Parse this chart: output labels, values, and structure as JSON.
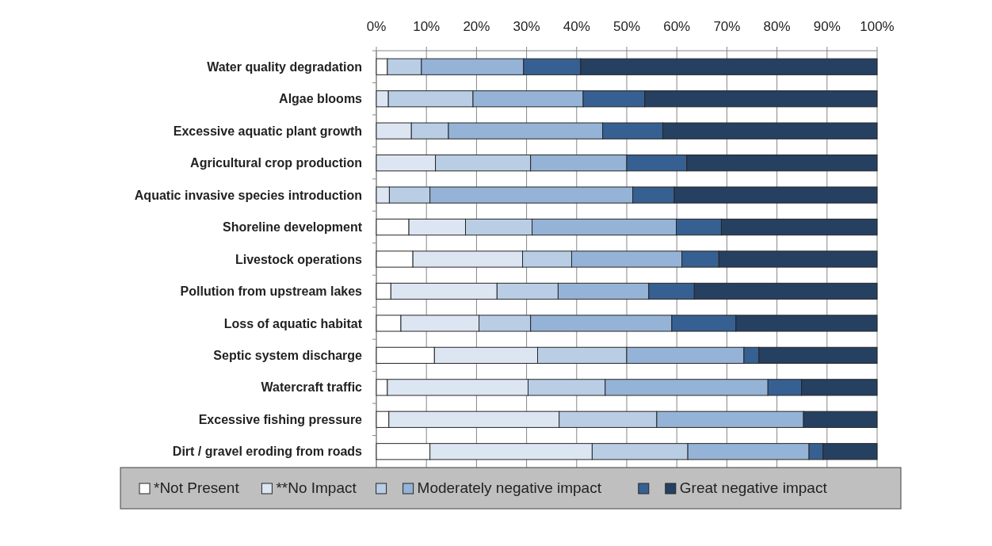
{
  "chart_data": {
    "type": "bar",
    "orientation": "horizontal",
    "stacked": true,
    "categories": [
      "Water quality degradation",
      "Algae blooms",
      "Excessive aquatic plant growth",
      "Agricultural crop production",
      "Aquatic invasive species introduction",
      "Shoreline development",
      "Livestock operations",
      "Pollution from upstream lakes",
      "Loss of aquatic habitat",
      "Septic system discharge",
      "Watercraft traffic",
      "Excessive fishing pressure",
      "Dirt / gravel eroding from roads"
    ],
    "series": [
      {
        "name": "*Not Present",
        "color": "#ffffff",
        "values": [
          2.2,
          0,
          0,
          0,
          0,
          6.5,
          7.3,
          2.9,
          4.9,
          11.6,
          2.2,
          2.5,
          10.7
        ]
      },
      {
        "name": "**No Impact",
        "color": "#dce6f2",
        "values": [
          0,
          2.4,
          7.0,
          11.8,
          2.6,
          11.3,
          21.9,
          21.2,
          15.6,
          20.6,
          28.1,
          34.0,
          32.4
        ]
      },
      {
        "name": null,
        "color": "#b9cde5",
        "values": [
          6.8,
          16.9,
          7.4,
          19.0,
          8.1,
          13.3,
          9.8,
          12.2,
          10.3,
          17.8,
          15.4,
          19.5,
          19.1
        ]
      },
      {
        "name": "Moderately negative impact",
        "color": "#95b3d7",
        "values": [
          20.4,
          22.0,
          30.8,
          19.2,
          40.5,
          28.8,
          22.0,
          18.1,
          28.2,
          23.4,
          32.5,
          29.3,
          24.2
        ]
      },
      {
        "name": null,
        "color": "#376092",
        "values": [
          11.4,
          12.3,
          12.0,
          12.0,
          8.3,
          9.0,
          7.4,
          9.1,
          12.8,
          3.0,
          6.7,
          0,
          2.8
        ]
      },
      {
        "name": "Great negative impact",
        "color": "#254061",
        "values": [
          59.2,
          46.4,
          42.8,
          38.0,
          40.5,
          31.1,
          31.6,
          36.5,
          28.2,
          23.6,
          15.1,
          14.7,
          10.8
        ]
      }
    ],
    "xlim": [
      0,
      100
    ],
    "xticks": [
      {
        "value": 0,
        "label": "0%"
      },
      {
        "value": 10,
        "label": "10%"
      },
      {
        "value": 20,
        "label": "20%"
      },
      {
        "value": 30,
        "label": "30%"
      },
      {
        "value": 40,
        "label": "40%"
      },
      {
        "value": 50,
        "label": "50%"
      },
      {
        "value": 60,
        "label": "60%"
      },
      {
        "value": 70,
        "label": "70%"
      },
      {
        "value": 80,
        "label": "80%"
      },
      {
        "value": 90,
        "label": "90%"
      },
      {
        "value": 100,
        "label": "100%"
      }
    ],
    "grid": "x",
    "legend": "bottom"
  }
}
